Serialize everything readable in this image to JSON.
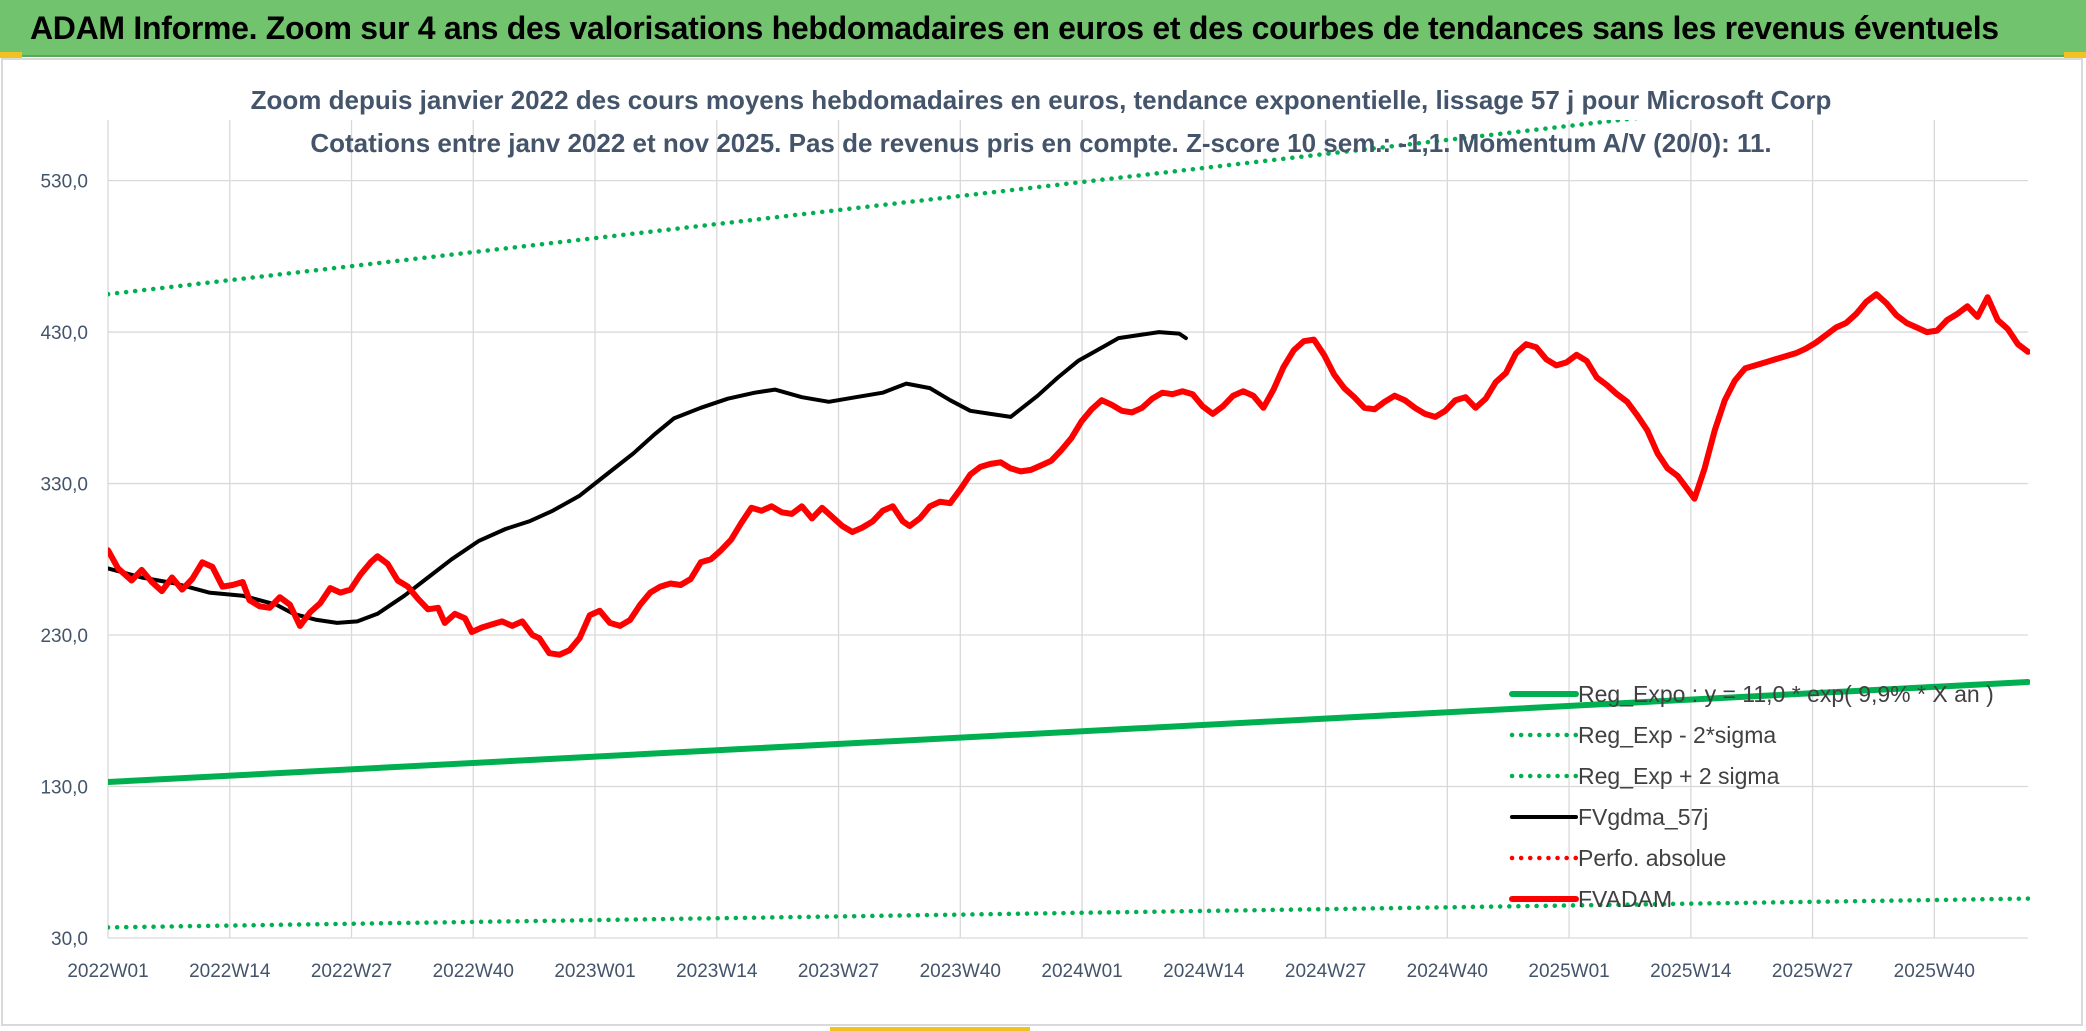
{
  "header": {
    "title": "ADAM Informe. Zoom sur 4 ans des valorisations hebdomadaires en euros et des courbes de tendances sans les revenus éventuels"
  },
  "colors": {
    "banner": "#72c36e",
    "accent": "#f2c320",
    "reg_expo": "#00b050",
    "fvgdma": "#000000",
    "fvadam": "#ff0000",
    "perfo": "#ff0000",
    "grid": "#d9d9d9",
    "text": "#44546a"
  },
  "chart_data": {
    "type": "line",
    "title": "Zoom depuis janvier 2022 des cours moyens hebdomadaires en euros, tendance exponentielle, lissage 57 j pour Microsoft Corp",
    "subtitle": "Cotations entre janv 2022 et nov 2025. Pas de revenus pris en compte. Z-score 10 sem.: -1,1. Momentum A/V (20/0): 11.",
    "xlabel": "",
    "ylabel": "",
    "ylim": [
      30,
      570
    ],
    "y_ticks": [
      30,
      130,
      230,
      330,
      430,
      530
    ],
    "y_tick_labels": [
      "30,0",
      "130,0",
      "230,0",
      "330,0",
      "430,0",
      "530,0"
    ],
    "x_tick_labels": [
      "2022W01",
      "2022W14",
      "2022W27",
      "2022W40",
      "2023W01",
      "2023W14",
      "2023W27",
      "2023W40",
      "2024W01",
      "2024W14",
      "2024W27",
      "2024W40",
      "2025W01",
      "2025W14",
      "2025W27",
      "2025W40"
    ],
    "x_tick_index": [
      0,
      13,
      26,
      39,
      52,
      65,
      78,
      91,
      104,
      117,
      130,
      143,
      156,
      169,
      182,
      195
    ],
    "n_weeks": 206,
    "grid": true,
    "legend_position": "bottom-right",
    "series": [
      {
        "name": "Reg_Expo : y = 11,0 * exp( 9,9% *  X  an )",
        "style": "solid-thick",
        "color": "#00b050",
        "points": [
          [
            0,
            133
          ],
          [
            205,
            199
          ]
        ]
      },
      {
        "name": "Reg_Exp - 2*sigma",
        "style": "dotted",
        "color": "#00b050",
        "points": [
          [
            0,
            37
          ],
          [
            205,
            56
          ]
        ]
      },
      {
        "name": "Reg_Exp + 2 sigma",
        "style": "dotted",
        "color": "#00b050",
        "points": [
          [
            0,
            455
          ],
          [
            205,
            601
          ]
        ]
      },
      {
        "name": "FVgdma_57j",
        "style": "solid",
        "color": "#000000",
        "points": [
          [
            0,
            274
          ],
          [
            10,
            268
          ],
          [
            20,
            264
          ],
          [
            30,
            258
          ],
          [
            40,
            256
          ],
          [
            50,
            250
          ],
          [
            55,
            244
          ],
          [
            62,
            240
          ],
          [
            68,
            238
          ],
          [
            74,
            239
          ],
          [
            80,
            244
          ],
          [
            88,
            256
          ],
          [
            95,
            268
          ],
          [
            102,
            280
          ],
          [
            110,
            292
          ],
          [
            118,
            300
          ],
          [
            125,
            305
          ],
          [
            132,
            312
          ],
          [
            140,
            322
          ],
          [
            148,
            336
          ],
          [
            156,
            350
          ],
          [
            162,
            362
          ],
          [
            168,
            373
          ],
          [
            176,
            380
          ],
          [
            184,
            386
          ],
          [
            192,
            390
          ],
          [
            198,
            392
          ],
          [
            206,
            387
          ],
          [
            214,
            384
          ],
          [
            222,
            387
          ],
          [
            230,
            390
          ],
          [
            237,
            396
          ],
          [
            244,
            393
          ],
          [
            250,
            385
          ],
          [
            256,
            378
          ],
          [
            262,
            376
          ],
          [
            268,
            374
          ],
          [
            276,
            388
          ],
          [
            282,
            400
          ],
          [
            288,
            411
          ],
          [
            296,
            421
          ],
          [
            300,
            426
          ],
          [
            306,
            428
          ],
          [
            312,
            430
          ],
          [
            318,
            429
          ],
          [
            320,
            426
          ]
        ]
      },
      {
        "name": "Perfo. absolue",
        "style": "dotted",
        "color": "#ff0000",
        "points": []
      },
      {
        "name": "FVADAM",
        "style": "solid-thick",
        "color": "#ff0000",
        "points": [
          [
            0,
            286
          ],
          [
            3,
            274
          ],
          [
            7,
            266
          ],
          [
            10,
            273
          ],
          [
            13,
            265
          ],
          [
            16,
            259
          ],
          [
            19,
            268
          ],
          [
            22,
            260
          ],
          [
            25,
            267
          ],
          [
            28,
            278
          ],
          [
            31,
            275
          ],
          [
            34,
            262
          ],
          [
            37,
            263
          ],
          [
            40,
            265
          ],
          [
            42,
            253
          ],
          [
            45,
            249
          ],
          [
            48,
            248
          ],
          [
            51,
            255
          ],
          [
            54,
            250
          ],
          [
            57,
            236
          ],
          [
            60,
            245
          ],
          [
            63,
            251
          ],
          [
            66,
            261
          ],
          [
            69,
            258
          ],
          [
            72,
            260
          ],
          [
            75,
            270
          ],
          [
            78,
            278
          ],
          [
            80,
            282
          ],
          [
            83,
            277
          ],
          [
            86,
            266
          ],
          [
            89,
            262
          ],
          [
            92,
            254
          ],
          [
            95,
            247
          ],
          [
            98,
            248
          ],
          [
            100,
            238
          ],
          [
            103,
            244
          ],
          [
            106,
            241
          ],
          [
            108,
            232
          ],
          [
            111,
            235
          ],
          [
            114,
            237
          ],
          [
            117,
            239
          ],
          [
            120,
            236
          ],
          [
            123,
            239
          ],
          [
            126,
            230
          ],
          [
            128,
            228
          ],
          [
            131,
            218
          ],
          [
            134,
            217
          ],
          [
            137,
            220
          ],
          [
            140,
            228
          ],
          [
            143,
            243
          ],
          [
            146,
            246
          ],
          [
            149,
            238
          ],
          [
            152,
            236
          ],
          [
            155,
            240
          ],
          [
            158,
            250
          ],
          [
            161,
            258
          ],
          [
            164,
            262
          ],
          [
            167,
            264
          ],
          [
            170,
            263
          ],
          [
            173,
            267
          ],
          [
            176,
            278
          ],
          [
            179,
            280
          ],
          [
            182,
            286
          ],
          [
            185,
            293
          ],
          [
            188,
            304
          ],
          [
            191,
            314
          ],
          [
            194,
            312
          ],
          [
            197,
            315
          ],
          [
            200,
            311
          ],
          [
            203,
            310
          ],
          [
            206,
            315
          ],
          [
            209,
            307
          ],
          [
            212,
            314
          ],
          [
            215,
            308
          ],
          [
            218,
            302
          ],
          [
            221,
            298
          ],
          [
            224,
            301
          ],
          [
            227,
            305
          ],
          [
            230,
            312
          ],
          [
            233,
            315
          ],
          [
            236,
            305
          ],
          [
            238,
            302
          ],
          [
            241,
            307
          ],
          [
            244,
            315
          ],
          [
            247,
            318
          ],
          [
            250,
            317
          ],
          [
            253,
            326
          ],
          [
            256,
            336
          ],
          [
            259,
            341
          ],
          [
            262,
            343
          ],
          [
            265,
            344
          ],
          [
            268,
            340
          ],
          [
            271,
            338
          ],
          [
            274,
            339
          ],
          [
            277,
            342
          ],
          [
            280,
            345
          ],
          [
            283,
            352
          ],
          [
            286,
            360
          ],
          [
            289,
            371
          ],
          [
            292,
            379
          ],
          [
            295,
            385
          ],
          [
            298,
            382
          ],
          [
            301,
            378
          ],
          [
            304,
            377
          ],
          [
            307,
            380
          ],
          [
            310,
            386
          ],
          [
            313,
            390
          ],
          [
            316,
            389
          ],
          [
            319,
            391
          ],
          [
            322,
            389
          ],
          [
            325,
            381
          ],
          [
            328,
            376
          ],
          [
            331,
            381
          ],
          [
            334,
            388
          ],
          [
            337,
            391
          ],
          [
            340,
            388
          ],
          [
            343,
            380
          ],
          [
            346,
            392
          ],
          [
            349,
            407
          ],
          [
            352,
            418
          ],
          [
            355,
            424
          ],
          [
            358,
            425
          ],
          [
            361,
            415
          ],
          [
            364,
            402
          ],
          [
            367,
            393
          ],
          [
            370,
            387
          ],
          [
            373,
            380
          ],
          [
            376,
            379
          ],
          [
            379,
            384
          ],
          [
            382,
            388
          ],
          [
            385,
            385
          ],
          [
            388,
            380
          ],
          [
            391,
            376
          ],
          [
            394,
            374
          ],
          [
            397,
            378
          ],
          [
            400,
            385
          ],
          [
            403,
            387
          ],
          [
            406,
            380
          ],
          [
            409,
            386
          ],
          [
            412,
            397
          ],
          [
            415,
            403
          ],
          [
            418,
            416
          ],
          [
            421,
            422
          ],
          [
            424,
            420
          ],
          [
            427,
            412
          ],
          [
            430,
            408
          ],
          [
            433,
            410
          ],
          [
            436,
            415
          ],
          [
            439,
            411
          ],
          [
            442,
            400
          ],
          [
            445,
            395
          ],
          [
            448,
            389
          ],
          [
            451,
            384
          ],
          [
            454,
            375
          ],
          [
            457,
            365
          ],
          [
            460,
            350
          ],
          [
            463,
            340
          ],
          [
            466,
            335
          ],
          [
            469,
            326
          ],
          [
            471,
            320
          ],
          [
            474,
            340
          ],
          [
            477,
            365
          ],
          [
            480,
            385
          ],
          [
            483,
            398
          ],
          [
            486,
            406
          ],
          [
            489,
            408
          ],
          [
            492,
            410
          ],
          [
            495,
            412
          ],
          [
            498,
            414
          ],
          [
            501,
            416
          ],
          [
            504,
            419
          ],
          [
            507,
            423
          ],
          [
            510,
            428
          ],
          [
            513,
            433
          ],
          [
            516,
            436
          ],
          [
            519,
            442
          ],
          [
            522,
            450
          ],
          [
            525,
            455
          ],
          [
            528,
            449
          ],
          [
            531,
            441
          ],
          [
            534,
            436
          ],
          [
            537,
            433
          ],
          [
            540,
            430
          ],
          [
            543,
            431
          ],
          [
            546,
            438
          ],
          [
            549,
            442
          ],
          [
            552,
            447
          ],
          [
            555,
            440
          ],
          [
            558,
            453
          ],
          [
            561,
            438
          ],
          [
            564,
            432
          ],
          [
            567,
            422
          ],
          [
            570,
            417
          ]
        ]
      }
    ]
  }
}
